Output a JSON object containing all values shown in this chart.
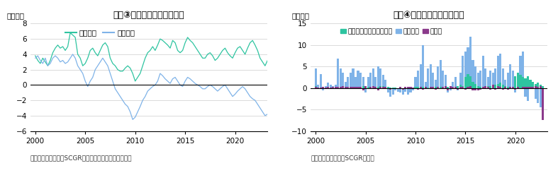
{
  "title1": "図表③　経常収支と貿易収支",
  "title2": "図表④　対外証券投資の動向",
  "ylabel1": "（兆円）",
  "ylabel2": "（兆円）",
  "footnote1": "（出所：財務省よりSCGR作成）　（注）四半期データ",
  "footnote2": "（出所：財務省よりSCGR作成）",
  "legend1_labels": [
    "経常収支",
    "貿易収支"
  ],
  "legend2_labels": [
    "株式・投資ファンド持分",
    "中長期債",
    "短期債"
  ],
  "line1_color": "#2ec4a0",
  "line2_color": "#7fb3e8",
  "bar_color1": "#2ec4a0",
  "bar_color2": "#7fb3e8",
  "bar_color3": "#8b3a8b",
  "ylim1": [
    -6,
    8
  ],
  "ylim2": [
    -10,
    15
  ],
  "yticks1": [
    -6,
    -4,
    -2,
    0,
    2,
    4,
    6,
    8
  ],
  "yticks2": [
    -10,
    -5,
    0,
    5,
    10,
    15
  ],
  "chart1_years": [
    2000,
    2005,
    2010,
    2015,
    2020
  ],
  "chart2_years": [
    2000,
    2005,
    2010,
    2015,
    2020
  ],
  "current_account": [
    3.8,
    3.2,
    2.8,
    3.5,
    3.0,
    2.5,
    3.2,
    4.2,
    4.8,
    5.2,
    4.8,
    5.0,
    4.5,
    5.0,
    6.8,
    6.5,
    6.2,
    4.0,
    3.5,
    2.5,
    2.8,
    3.5,
    4.5,
    4.8,
    4.2,
    3.8,
    4.5,
    5.2,
    5.5,
    5.0,
    3.5,
    2.8,
    2.5,
    2.0,
    1.8,
    1.8,
    2.2,
    2.5,
    2.2,
    1.5,
    0.5,
    1.0,
    1.5,
    2.5,
    3.5,
    4.2,
    4.5,
    5.0,
    4.5,
    5.2,
    6.0,
    5.8,
    5.5,
    5.2,
    4.8,
    5.8,
    5.5,
    4.5,
    4.2,
    4.5,
    5.5,
    6.2,
    5.8,
    5.5,
    5.0,
    4.5,
    4.0,
    3.5,
    3.5,
    4.0,
    4.2,
    3.8,
    3.2,
    3.5,
    4.0,
    4.5,
    4.8,
    4.2,
    3.8,
    3.5,
    4.2,
    4.8,
    5.0,
    4.5,
    4.0,
    4.8,
    5.5,
    5.8,
    5.2,
    4.5,
    3.5,
    3.0,
    2.5,
    3.2
  ],
  "trade_balance": [
    3.5,
    3.8,
    3.2,
    2.8,
    3.5,
    2.5,
    2.8,
    3.5,
    3.8,
    3.5,
    3.0,
    3.2,
    2.8,
    3.0,
    3.5,
    4.0,
    3.5,
    2.5,
    2.0,
    1.5,
    0.5,
    -0.2,
    0.5,
    1.0,
    2.0,
    2.5,
    3.0,
    3.5,
    3.0,
    2.5,
    1.5,
    0.5,
    -0.5,
    -1.0,
    -1.5,
    -2.0,
    -2.5,
    -2.8,
    -3.5,
    -4.5,
    -4.2,
    -3.5,
    -2.8,
    -2.0,
    -1.5,
    -0.8,
    -0.5,
    -0.2,
    0.0,
    0.5,
    1.5,
    1.2,
    0.8,
    0.5,
    0.2,
    0.8,
    1.0,
    0.5,
    0.0,
    -0.2,
    0.5,
    1.0,
    0.8,
    0.5,
    0.2,
    0.0,
    -0.2,
    -0.5,
    -0.5,
    -0.2,
    0.0,
    -0.2,
    -0.5,
    -0.8,
    -0.5,
    -0.2,
    0.0,
    -0.5,
    -1.0,
    -1.5,
    -1.2,
    -0.8,
    -0.5,
    -0.2,
    -0.5,
    -1.0,
    -1.5,
    -1.8,
    -2.0,
    -2.5,
    -3.0,
    -3.5,
    -4.0,
    -3.8
  ],
  "bar_quarters": [
    2000.0,
    2000.25,
    2000.5,
    2000.75,
    2001.0,
    2001.25,
    2001.5,
    2001.75,
    2002.0,
    2002.25,
    2002.5,
    2002.75,
    2003.0,
    2003.25,
    2003.5,
    2003.75,
    2004.0,
    2004.25,
    2004.5,
    2004.75,
    2005.0,
    2005.25,
    2005.5,
    2005.75,
    2006.0,
    2006.25,
    2006.5,
    2006.75,
    2007.0,
    2007.25,
    2007.5,
    2007.75,
    2008.0,
    2008.25,
    2008.5,
    2008.75,
    2009.0,
    2009.25,
    2009.5,
    2009.75,
    2010.0,
    2010.25,
    2010.5,
    2010.75,
    2011.0,
    2011.25,
    2011.5,
    2011.75,
    2012.0,
    2012.25,
    2012.5,
    2012.75,
    2013.0,
    2013.25,
    2013.5,
    2013.75,
    2014.0,
    2014.25,
    2014.5,
    2014.75,
    2015.0,
    2015.25,
    2015.5,
    2015.75,
    2016.0,
    2016.25,
    2016.5,
    2016.75,
    2017.0,
    2017.25,
    2017.5,
    2017.75,
    2018.0,
    2018.25,
    2018.5,
    2018.75,
    2019.0,
    2019.25,
    2019.5,
    2019.75,
    2020.0,
    2020.25,
    2020.5,
    2020.75,
    2021.0,
    2021.25,
    2021.5,
    2021.75,
    2022.0,
    2022.25,
    2022.5,
    2022.75
  ],
  "stocks": [
    0.5,
    0.1,
    0.1,
    0.1,
    0.1,
    0.0,
    0.1,
    0.1,
    0.1,
    0.2,
    0.2,
    0.1,
    0.1,
    0.2,
    0.3,
    0.3,
    0.3,
    0.3,
    0.3,
    0.4,
    0.4,
    0.3,
    0.2,
    0.2,
    0.3,
    0.3,
    0.4,
    0.4,
    0.3,
    0.2,
    0.1,
    0.1,
    0.1,
    0.0,
    0.0,
    0.0,
    0.0,
    0.0,
    0.0,
    0.1,
    0.2,
    0.3,
    0.2,
    0.2,
    0.1,
    0.1,
    0.2,
    0.3,
    0.3,
    0.2,
    0.2,
    0.2,
    0.2,
    0.2,
    0.2,
    0.3,
    -0.2,
    0.5,
    0.8,
    0.5,
    2.5,
    3.2,
    2.8,
    1.5,
    1.0,
    0.5,
    0.3,
    0.2,
    0.3,
    0.4,
    0.5,
    0.5,
    0.8,
    1.0,
    1.2,
    0.8,
    0.5,
    0.3,
    0.3,
    0.2,
    2.8,
    3.5,
    3.0,
    2.5,
    2.2,
    2.8,
    2.0,
    1.5,
    1.0,
    1.2,
    0.8,
    0.5
  ],
  "bonds": [
    4.5,
    0.8,
    3.2,
    -0.5,
    0.5,
    1.2,
    0.8,
    0.5,
    0.8,
    6.8,
    4.5,
    3.5,
    1.5,
    2.5,
    3.5,
    4.5,
    2.5,
    4.0,
    3.5,
    2.5,
    -1.0,
    2.5,
    3.5,
    4.5,
    2.5,
    5.0,
    4.5,
    3.0,
    2.0,
    -1.0,
    -2.0,
    -1.5,
    -0.5,
    -0.8,
    -1.0,
    -1.5,
    -0.8,
    -1.5,
    -1.0,
    -0.5,
    2.5,
    4.0,
    5.5,
    10.0,
    1.5,
    4.5,
    5.5,
    3.5,
    2.0,
    5.0,
    6.5,
    4.0,
    3.0,
    -1.0,
    -0.5,
    1.5,
    2.5,
    -0.5,
    3.5,
    7.5,
    8.5,
    9.5,
    12.0,
    6.5,
    5.0,
    3.5,
    4.0,
    7.5,
    4.5,
    2.5,
    4.0,
    3.5,
    4.5,
    7.5,
    8.0,
    4.5,
    2.0,
    3.5,
    5.5,
    4.0,
    -1.0,
    3.5,
    7.5,
    8.5,
    -2.0,
    -3.0,
    0.5,
    1.5,
    -2.5,
    -3.5,
    -4.5,
    -7.5
  ],
  "short_bonds": [
    0.2,
    0.1,
    0.1,
    0.3,
    0.1,
    0.2,
    0.1,
    0.2,
    0.2,
    0.3,
    0.3,
    0.5,
    0.3,
    0.2,
    0.2,
    0.3,
    0.3,
    0.2,
    0.3,
    -0.5,
    0.5,
    -0.2,
    0.3,
    0.5,
    0.3,
    -0.5,
    0.2,
    0.3,
    0.2,
    -0.2,
    -0.3,
    -0.2,
    -0.2,
    -0.1,
    0.2,
    -0.3,
    0.2,
    0.3,
    0.2,
    0.1,
    -0.2,
    -0.3,
    0.2,
    -0.3,
    0.2,
    -0.2,
    0.2,
    0.3,
    -0.3,
    0.2,
    -0.2,
    0.3,
    0.5,
    -0.5,
    0.5,
    0.3,
    0.3,
    -0.3,
    0.2,
    0.3,
    -0.3,
    0.3,
    0.5,
    -0.5,
    -0.5,
    -0.5,
    -0.3,
    0.2,
    0.5,
    0.3,
    -0.3,
    0.8,
    -0.3,
    0.5,
    0.3,
    -0.3,
    0.2,
    -0.3,
    0.2,
    0.3,
    -0.3,
    0.2,
    -0.2,
    0.3,
    0.3,
    0.2,
    0.3,
    0.2,
    0.5,
    0.3,
    0.5,
    -7.5
  ],
  "grid_color": "#cccccc",
  "zero_line_color": "#000000"
}
